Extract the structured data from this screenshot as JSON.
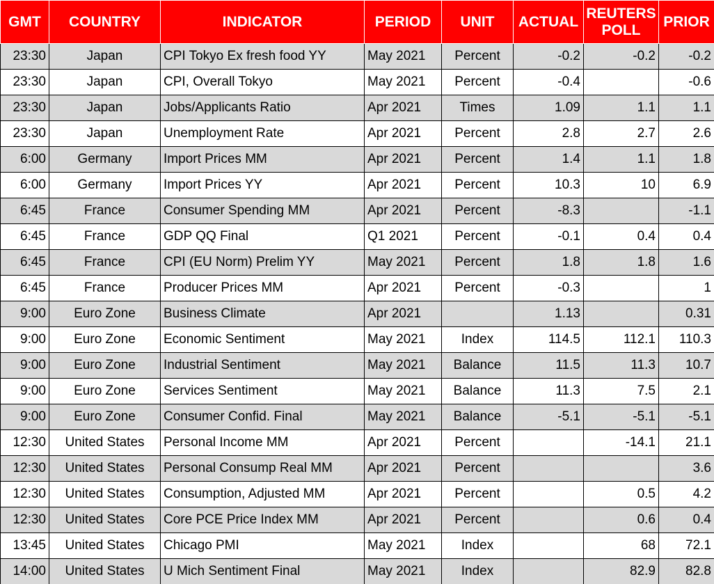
{
  "table": {
    "header": [
      "GMT",
      "COUNTRY",
      "INDICATOR",
      "PERIOD",
      "UNIT",
      "ACTUAL",
      "REUTERS POLL",
      "PRIOR"
    ],
    "rows": [
      [
        "23:30",
        "Japan",
        "CPI Tokyo Ex fresh food YY",
        "May 2021",
        "Percent",
        "-0.2",
        "-0.2",
        "-0.2"
      ],
      [
        "23:30",
        "Japan",
        "CPI, Overall Tokyo",
        "May 2021",
        "Percent",
        "-0.4",
        null,
        "-0.6"
      ],
      [
        "23:30",
        "Japan",
        "Jobs/Applicants Ratio",
        "Apr 2021",
        "Times",
        "1.09",
        "1.1",
        "1.1"
      ],
      [
        "23:30",
        "Japan",
        "Unemployment Rate",
        "Apr 2021",
        "Percent",
        "2.8",
        "2.7",
        "2.6"
      ],
      [
        "6:00",
        "Germany",
        "Import Prices MM",
        "Apr 2021",
        "Percent",
        "1.4",
        "1.1",
        "1.8"
      ],
      [
        "6:00",
        "Germany",
        "Import Prices YY",
        "Apr 2021",
        "Percent",
        "10.3",
        "10",
        "6.9"
      ],
      [
        "6:45",
        "France",
        "Consumer Spending MM",
        "Apr 2021",
        "Percent",
        "-8.3",
        null,
        "-1.1"
      ],
      [
        "6:45",
        "France",
        "GDP QQ Final",
        "Q1 2021",
        "Percent",
        "-0.1",
        "0.4",
        "0.4"
      ],
      [
        "6:45",
        "France",
        "CPI (EU Norm) Prelim YY",
        "May 2021",
        "Percent",
        "1.8",
        "1.8",
        "1.6"
      ],
      [
        "6:45",
        "France",
        "Producer Prices MM",
        "Apr 2021",
        "Percent",
        "-0.3",
        null,
        "1"
      ],
      [
        "9:00",
        "Euro Zone",
        "Business Climate",
        "Apr 2021",
        null,
        "1.13",
        null,
        "0.31"
      ],
      [
        "9:00",
        "Euro Zone",
        "Economic Sentiment",
        "May 2021",
        "Index",
        "114.5",
        "112.1",
        "110.3"
      ],
      [
        "9:00",
        "Euro Zone",
        "Industrial Sentiment",
        "May 2021",
        "Balance",
        "11.5",
        "11.3",
        "10.7"
      ],
      [
        "9:00",
        "Euro Zone",
        "Services Sentiment",
        "May 2021",
        "Balance",
        "11.3",
        "7.5",
        "2.1"
      ],
      [
        "9:00",
        "Euro Zone",
        "Consumer Confid. Final",
        "May 2021",
        "Balance",
        "-5.1",
        "-5.1",
        "-5.1"
      ],
      [
        "12:30",
        "United States",
        "Personal Income MM",
        "Apr 2021",
        "Percent",
        null,
        "-14.1",
        "21.1"
      ],
      [
        "12:30",
        "United States",
        "Personal Consump Real MM",
        "Apr 2021",
        "Percent",
        null,
        null,
        "3.6"
      ],
      [
        "12:30",
        "United States",
        "Consumption, Adjusted MM",
        "Apr 2021",
        "Percent",
        null,
        "0.5",
        "4.2"
      ],
      [
        "12:30",
        "United States",
        "Core PCE Price Index MM",
        "Apr 2021",
        "Percent",
        null,
        "0.6",
        "0.4"
      ],
      [
        "13:45",
        "United States",
        "Chicago PMI",
        "May 2021",
        "Index",
        null,
        "68",
        "72.1"
      ],
      [
        "14:00",
        "United States",
        "U Mich Sentiment Final",
        "May 2021",
        "Index",
        null,
        "82.9",
        "82.8"
      ]
    ]
  }
}
